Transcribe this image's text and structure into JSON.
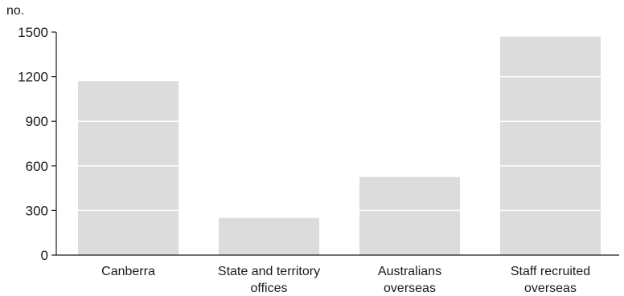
{
  "chart_data": {
    "type": "bar",
    "title": "",
    "xlabel": "",
    "ylabel": "no.",
    "ylim": [
      0,
      1500
    ],
    "yticks": [
      0,
      300,
      600,
      900,
      1200,
      1500
    ],
    "categories": [
      [
        "Canberra"
      ],
      [
        "State and territory",
        "offices"
      ],
      [
        "Australians",
        "overseas"
      ],
      [
        "Staff recruited",
        "overseas"
      ]
    ],
    "values": [
      1170,
      250,
      525,
      1470
    ],
    "grid": false,
    "bar_color": "#dcdcdc",
    "internal_lines_color": "#ffffff",
    "axis_color": "#1a1a1a"
  }
}
